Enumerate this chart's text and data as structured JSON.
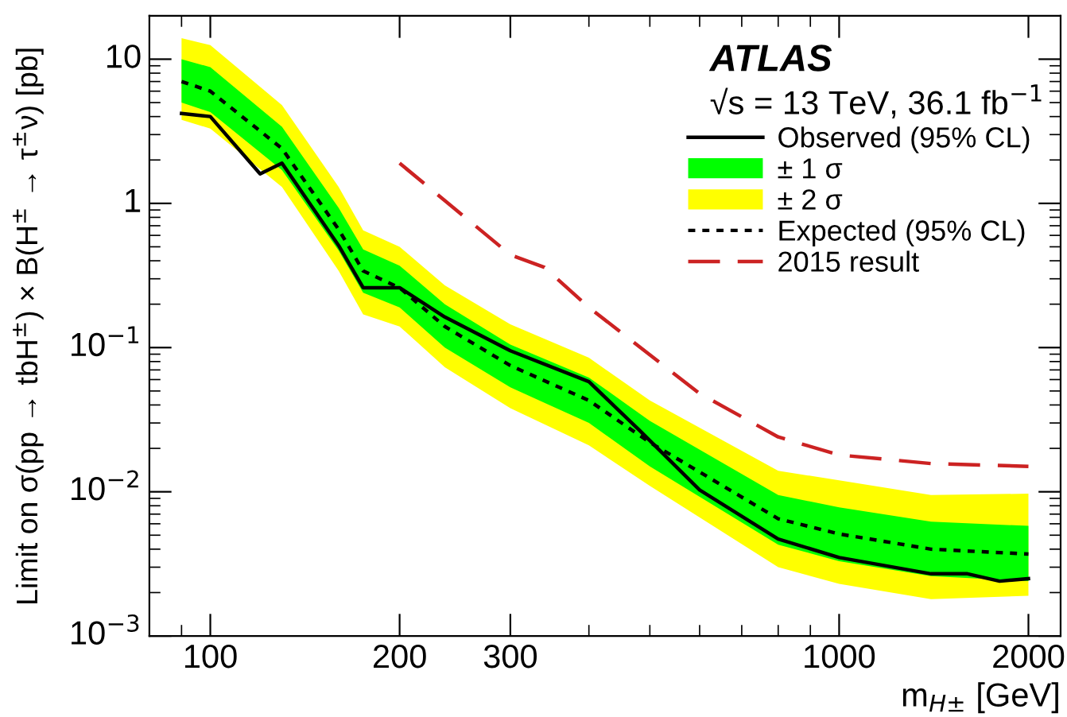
{
  "chart_data": {
    "type": "line",
    "title": "ATLAS",
    "subtitle": "√s = 13 TeV, 36.1 fb$^{−1}$",
    "xlabel": "m$_{H±}$ [GeV]",
    "ylabel": "Limit on σ(pp → tbH$^{±}$) × B(H$^{±}$ → τ$^{±}$ν) [pb]",
    "log": "xy",
    "xlim": [
      80,
      2250
    ],
    "ylim": [
      0.001,
      20
    ],
    "xticks": [
      {
        "value": 90,
        "label": null
      },
      100,
      200,
      300,
      {
        "value": 400,
        "label": null
      },
      {
        "value": 500,
        "label": null
      },
      {
        "value": 600,
        "label": null
      },
      {
        "value": 700,
        "label": null
      },
      {
        "value": 800,
        "label": null
      },
      {
        "value": 900,
        "label": null
      },
      1000,
      2000
    ],
    "yticks": [
      {
        "value": 0.001,
        "label": "10$^{−3}$"
      },
      {
        "value": 0.01,
        "label": "10$^{−2}$"
      },
      {
        "value": 0.1,
        "label": "10$^{−1}$"
      },
      1,
      10
    ],
    "legend": "top right",
    "grid": false,
    "series": [
      {
        "name": "Observed (95% CL)",
        "type": "line",
        "color": "#000000",
        "line_style": "solid",
        "x": [
          90,
          100,
          120,
          130,
          160,
          175,
          200,
          236,
          300,
          400,
          480,
          600,
          800,
          1000,
          1400,
          1600,
          1800,
          2000
        ],
        "values": [
          4.2,
          4.0,
          1.6,
          1.9,
          0.51,
          0.26,
          0.26,
          0.163,
          0.095,
          0.058,
          0.027,
          0.0103,
          0.0047,
          0.0035,
          0.0027,
          0.0027,
          0.0024,
          0.0025
        ]
      },
      {
        "name": "± 1 σ",
        "type": "line",
        "color": "#00ff00",
        "x": [
          90,
          100,
          130,
          160,
          175,
          200,
          236,
          300,
          400,
          500,
          800,
          1000,
          1400,
          2000
        ],
        "values": [
          null,
          null,
          null,
          null,
          null,
          null,
          null,
          null,
          null,
          null,
          null,
          null,
          null,
          null
        ],
        "lower": [
          5.0,
          4.3,
          1.7,
          0.47,
          0.24,
          0.19,
          0.1,
          0.053,
          0.03,
          0.015,
          0.0043,
          0.0033,
          0.0026,
          0.0024
        ],
        "upper": [
          10,
          8.8,
          3.4,
          0.93,
          0.48,
          0.37,
          0.2,
          0.105,
          0.062,
          0.031,
          0.0095,
          0.0078,
          0.0062,
          0.0058
        ]
      },
      {
        "name": "± 2 σ",
        "type": "line",
        "color": "#ffff00",
        "x": [
          90,
          100,
          130,
          160,
          175,
          200,
          236,
          300,
          400,
          500,
          800,
          1000,
          1400,
          2000
        ],
        "values": [
          null,
          null,
          null,
          null,
          null,
          null,
          null,
          null,
          null,
          null,
          null,
          null,
          null,
          null
        ],
        "lower": [
          3.8,
          3.3,
          1.3,
          0.34,
          0.17,
          0.14,
          0.073,
          0.038,
          0.021,
          0.011,
          0.003,
          0.0023,
          0.0018,
          0.0019
        ],
        "upper": [
          14,
          12.5,
          4.8,
          1.3,
          0.65,
          0.5,
          0.27,
          0.145,
          0.085,
          0.043,
          0.014,
          0.012,
          0.0095,
          0.0097
        ]
      },
      {
        "name": "Expected (95% CL)",
        "type": "line",
        "color": "#000000",
        "line_style": "dotted",
        "x": [
          90,
          100,
          130,
          160,
          175,
          200,
          236,
          300,
          400,
          500,
          800,
          1000,
          1400,
          2000
        ],
        "values": [
          7.0,
          6.0,
          2.4,
          0.66,
          0.34,
          0.26,
          0.14,
          0.075,
          0.043,
          0.022,
          0.0065,
          0.0051,
          0.004,
          0.0037
        ]
      },
      {
        "name": "2015 result",
        "type": "line",
        "color": "#cc2222",
        "line_style": "dashed",
        "x": [
          200,
          300,
          340,
          400,
          600,
          800,
          1000,
          1400,
          2000
        ],
        "values": [
          1.9,
          0.44,
          0.36,
          0.19,
          0.048,
          0.024,
          0.018,
          0.0157,
          0.015
        ]
      }
    ]
  }
}
